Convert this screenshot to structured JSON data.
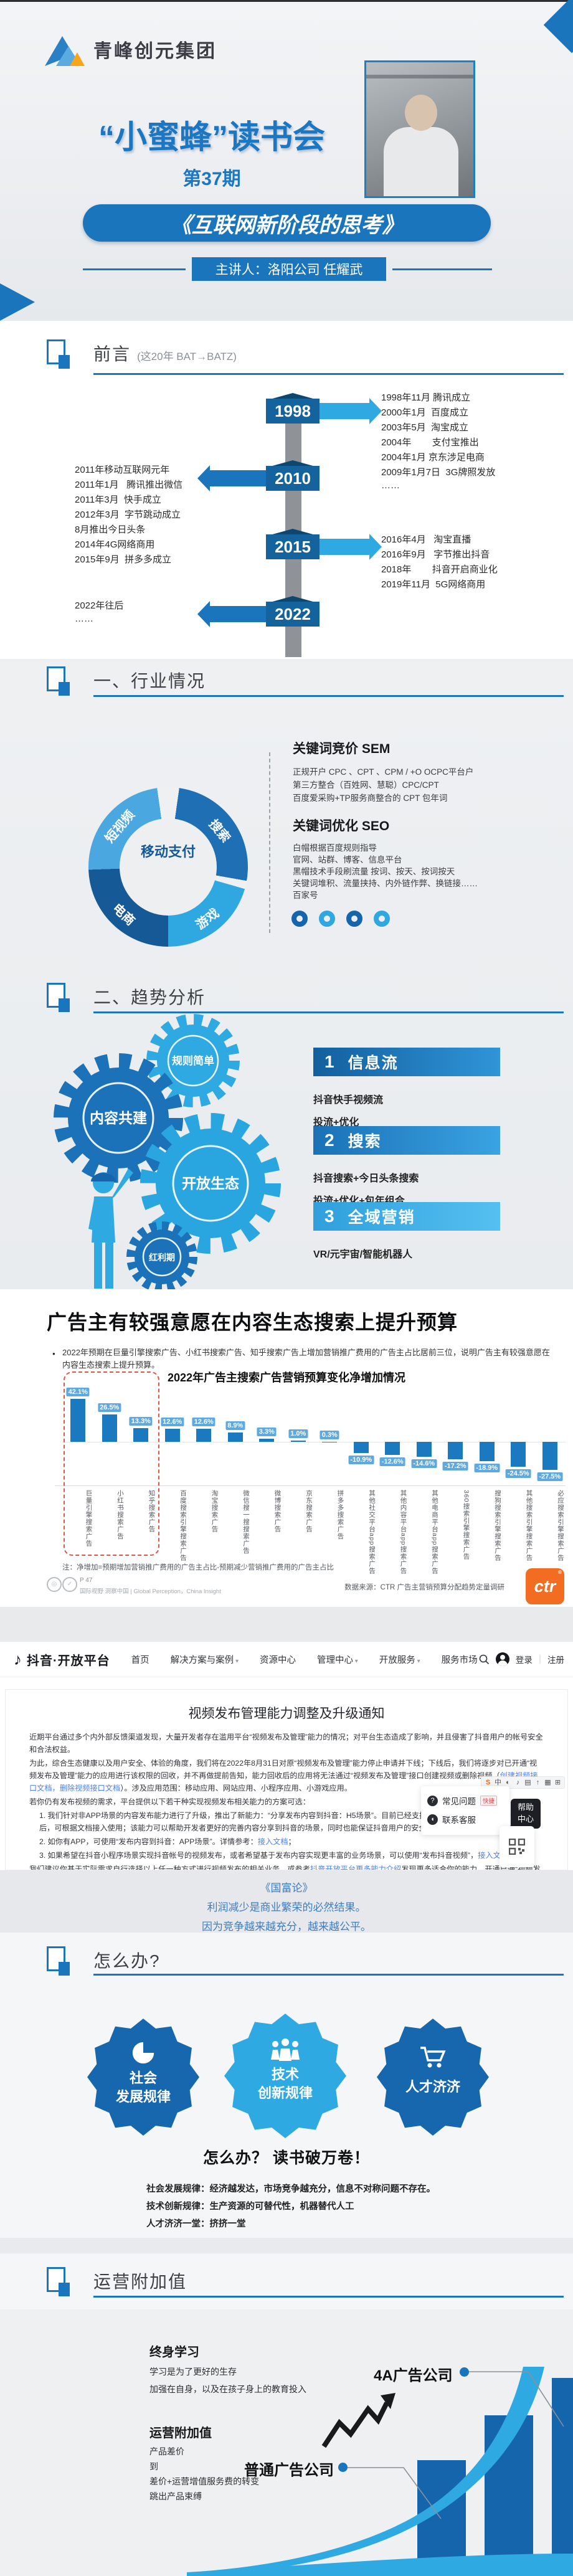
{
  "theme": {
    "primary": "#1b75bc",
    "light_blue": "#2fa9e2",
    "dark_blue": "#155a97",
    "bar": "#1b79c0",
    "label_bg": "#5da9e0",
    "highlight_red": "#e05545",
    "ctr_orange": "#f26c22"
  },
  "hero": {
    "company": "青峰创元集团",
    "title": "“小蜜蜂”读书会",
    "episode": "第37期",
    "book_title": "《互联网新阶段的思考》",
    "speaker": "主讲人：洛阳公司  任耀武"
  },
  "preface": {
    "title": "前言",
    "subtitle": "(这20年  BAT→BATZ)",
    "milestones": [
      {
        "year": "1998",
        "events": [
          "1998年11月 腾讯成立",
          "2000年1月  百度成立",
          "2003年5月  淘宝成立",
          "2004年        支付宝推出",
          "2004年1月 京东涉足电商",
          "2009年1月7日  3G牌照发放",
          "……"
        ]
      },
      {
        "year": "2010",
        "events": [
          "2011年移动互联网元年",
          "2011年1月   腾讯推出微信",
          "2011年3月  快手成立",
          "2012年3月  字节跳动成立",
          "8月推出今日头条",
          "2014年4G网络商用",
          "2015年9月  拼多多成立"
        ]
      },
      {
        "year": "2015",
        "events": [
          "2016年4月   淘宝直播",
          "2016年9月   字节推出抖音",
          "2018年        抖音开启商业化",
          "2019年11月  5G网络商用"
        ]
      },
      {
        "year": "2022",
        "events": [
          "2022年往后",
          "……"
        ]
      }
    ]
  },
  "industry": {
    "title": "一、行业情况",
    "donut": {
      "center": "移动支付",
      "labels": [
        "短视频",
        "搜索",
        "游戏",
        "电商"
      ]
    },
    "sem_heading": "关键词竞价 SEM",
    "sem_lines": [
      "正规开户 CPC 、CPT 、CPM  / +O OCPC平台户",
      "第三方整合（百姓网、慧聪）CPC/CPT",
      "百度爱采购+TP服务商整合的 CPT 包年词"
    ],
    "seo_heading": "关键词优化 SEO",
    "seo_lines": [
      "白帽根据百度规则指导",
      "官网、站群、博客、信息平台",
      "黑帽技术手段刷流量  按词、按天、按词按天",
      "关键词堆积、流量挟持、内外链作弊、换链接……",
      "百家号"
    ]
  },
  "trends": {
    "title": "二、趋势分析",
    "gears": [
      "内容共建",
      "规则简单",
      "开放生态",
      "红利期"
    ],
    "items": [
      {
        "num": "1",
        "heading": "信息流",
        "lines": [
          "抖音快手视频流",
          "投流+优化"
        ]
      },
      {
        "num": "2",
        "heading": "搜索",
        "lines": [
          "抖音搜索+今日头条搜索",
          "投流+优化+包年组合"
        ]
      },
      {
        "num": "3",
        "heading": "全域营销",
        "lines": [
          "VR/元宇宙/智能机器人"
        ]
      }
    ]
  },
  "budget": {
    "headline": "广告主有较强意愿在内容生态搜索上提升预算",
    "bullet": "2022年预期在巨量引擎搜索广告、小红书搜索广告、知乎搜索广告上增加营销推广费用的广告主占比居前三位，说明广告主有较强意愿在内容生态搜索上提升预算。",
    "note": "注：净增加=预期增加营销推广费用的广告主占比-预期减少营销推广费用的广告主占比",
    "source": "数据来源：CTR 广告主营销预算分配趋势定量调研",
    "page_ref": "P 47",
    "footer_left": "国际视野 洞察中国 | Global Perception，China Insight",
    "ctr_logo": "ctr"
  },
  "chart_data": {
    "type": "bar",
    "title": "2022年广告主搜索广告营销预算变化净增加情况",
    "unit": "%",
    "categories": [
      "巨量引擎搜索广告",
      "小红书搜索广告",
      "知乎搜索广告",
      "百度搜索引擎搜索广告",
      "淘宝搜索广告",
      "微信搜一搜搜索广告",
      "微博搜索广告",
      "京东搜索广告",
      "拼多多搜索广告",
      "其他社交平台app搜索广告",
      "其他内容平台app搜索广告",
      "其他电商平台app搜索广告",
      "360搜索引擎搜索广告",
      "搜狗搜索引擎搜索广告",
      "其他搜索引擎搜索广告",
      "必应搜索引擎搜索广告"
    ],
    "values": [
      42.1,
      26.5,
      13.3,
      12.6,
      12.6,
      8.9,
      3.3,
      1.0,
      0.3,
      -10.9,
      -12.6,
      -14.6,
      -17.2,
      -18.9,
      -24.5,
      -27.5
    ],
    "highlight_first_n": 3,
    "ylim": [
      -30,
      45
    ],
    "grid": false,
    "legend": false,
    "xlabel": "",
    "ylabel": ""
  },
  "douyin": {
    "brand": "抖音·开放平台",
    "nav": [
      "首页",
      "解决方案与案例",
      "资源中心",
      "管理中心",
      "开放服务",
      "服务市场"
    ],
    "login": "登录",
    "register": "注册",
    "notice_title": "视频发布管理能力调整及升级通知",
    "p1": "近期平台通过多个内外部反馈渠道发现，大量开发者存在滥用平台“视频发布及管理”能力的情况；对平台生态造成了影响，并且侵害了抖音用户的帐号安全和合法权益。",
    "p2a": "为此，综合生态健康以及用户安全、体验的角度，我们将在2022年8月31日对原“视频发布及管理”能力停止申请并下线；下线后，我们将逐步对已开通“视频发布及管理”能力的应用进行该权限的回收，并不再做提前告知，能力回收后的应用将无法通过“视频发布及管理”接口创建视频或删除视频（",
    "p2_link": "创建视频接口文档，删除视频接口文档",
    "p2b": "）。涉及应用范围：移动应用、网站应用、小程序应用、小游戏应用。",
    "p3": "若你仍有发布视频的需求，平台提供以下若干种实现视频发布相关能力的方案可选：",
    "li1a": "1. 我们针对非APP场景的内容发布能力进行了升级，推出了新能力：“分享发布内容到抖音：H5场景”。目前已经支持开发者应用自助申请，申请通过后，可根据文档接入使用；该能力可以帮助开发者更好的完善内容分享到抖音的场景，同时也能保证抖音用户的安全及权益，详情参考：",
    "li1_link": "接入文档",
    "li1b": "；",
    "li2a": "2. 如你有APP，可使用“发布内容到抖音：APP场景”。详情参考：",
    "li2_link": "接入文档",
    "li2b": "；",
    "li3a": "3. 如果希望在抖音小程序场景实现抖音帐号的视频发布，或者希望基于发布内容实现更丰富的业务场景，可以使用“发布抖音视频”，",
    "li3_link": "接入文档",
    "li3b": "。",
    "p4a": "我们建议你基于实际需求自行选择以上任一种方式进行视频发布的相关业务，或参考",
    "p4_link": "抖音开放平台更多能力介绍",
    "p4b": "发现更多适合你的能力。开通已通“视频发布及管理”的开发者应用尽快调整相关接口或进行适配，避免造成较大影响。感谢各位开发者的理解。",
    "faq": "常见问题",
    "faq_badge": "快捷",
    "contact": "联系客服",
    "help_top": "帮助",
    "help_bottom": "中心",
    "ext_icons": [
      "S",
      "中",
      "◐",
      "♪",
      "▤",
      "↑",
      "▦",
      "⊞"
    ]
  },
  "quote": {
    "source": "《国富论》",
    "line1": "利润减少是商业繁荣的必然结果。",
    "line2": "因为竞争越来越充分，越来越公平。"
  },
  "howto": {
    "title": "怎么办?",
    "badges": [
      {
        "line1": "社会",
        "line2": "发展规律"
      },
      {
        "line1": "技术",
        "line2": "创新规律"
      },
      {
        "line1": "人才济济",
        "line2": ""
      }
    ],
    "slogan": "怎么办？  读书破万卷！",
    "lines": [
      "社会发展规律：经济越发达，市场竞争越充分，信息不对称问题不存在。",
      "技术创新规律：生产资源的可替代性，机器替代人工",
      "人才济济一堂：挤挤一堂"
    ]
  },
  "ops": {
    "title": "运营附加值",
    "h1": "终身学习",
    "h1_lines": [
      "学习是为了更好的生存",
      "加强在自身，以及在孩子身上的教育投入"
    ],
    "h2": "运营附加值",
    "h2_lines": [
      "产品差价",
      "到",
      "差价+运营增值服务费的转变",
      "跳出产品束缚"
    ],
    "label_4a": "4A广告公司",
    "label_ordinary": "普通广告公司"
  }
}
